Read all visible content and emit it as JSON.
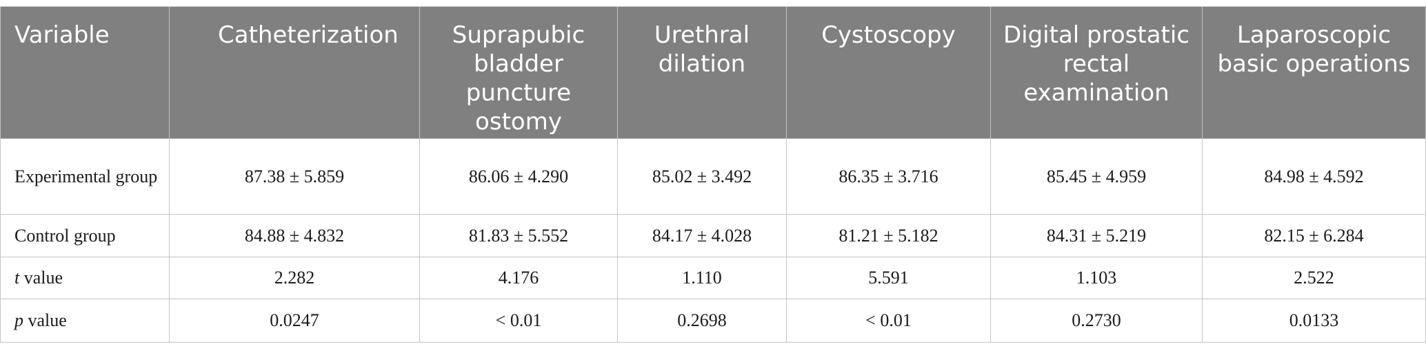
{
  "table": {
    "headers": [
      "Variable",
      "Catheterization",
      "Suprapubic bladder puncture ostomy",
      "Urethral dilation",
      "Cystoscopy",
      "Digital prostatic rectal examination",
      "Laparoscopic basic operations"
    ],
    "rows": [
      {
        "label": "Experimental group",
        "values": [
          "87.38 ± 5.859",
          "86.06 ± 4.290",
          "85.02 ± 3.492",
          "86.35 ± 3.716",
          "85.45 ± 4.959",
          "84.98 ± 4.592"
        ]
      },
      {
        "label": "Control group",
        "values": [
          "84.88 ± 4.832",
          "81.83 ± 5.552",
          "84.17 ± 4.028",
          "81.21 ± 5.182",
          "84.31 ± 5.219",
          "82.15 ± 6.284"
        ]
      },
      {
        "label_italic": "t",
        "label_rest": " value",
        "values": [
          "2.282",
          "4.176",
          "1.110",
          "5.591",
          "1.103",
          "2.522"
        ]
      },
      {
        "label_italic": "p",
        "label_rest": " value",
        "values": [
          "0.0247",
          "< 0.01",
          "0.2698",
          "< 0.01",
          "0.2730",
          "0.0133"
        ]
      }
    ]
  }
}
